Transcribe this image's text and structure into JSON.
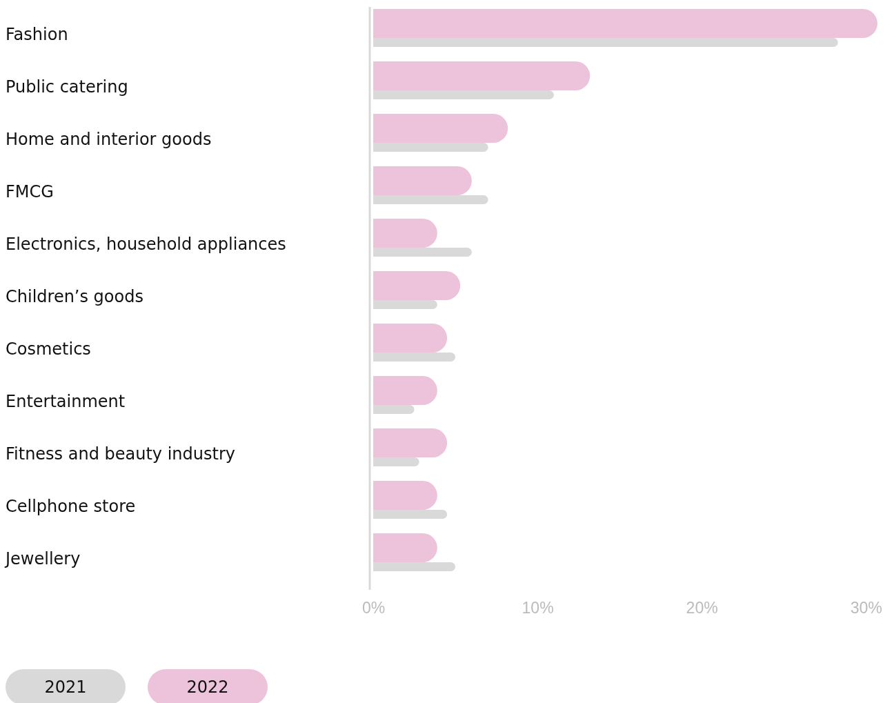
{
  "chart_data": {
    "type": "bar",
    "orientation": "horizontal",
    "categories": [
      "Fashion",
      "Public catering",
      "Home and interior goods",
      "FMCG",
      "Electronics, household appliances",
      "Children’s goods",
      "Cosmetics",
      "Entertainment",
      "Fitness and beauty industry",
      "Cellphone store",
      "Jewellery"
    ],
    "series": [
      {
        "name": "2021",
        "color": "#d9d9d9",
        "values": [
          28.3,
          11.0,
          7.0,
          7.0,
          6.0,
          3.9,
          5.0,
          2.5,
          2.8,
          4.5,
          5.0
        ]
      },
      {
        "name": "2022",
        "color": "#ecc3da",
        "values": [
          30.7,
          13.2,
          8.2,
          6.0,
          3.9,
          5.3,
          4.5,
          3.9,
          4.5,
          3.9,
          3.9
        ]
      }
    ],
    "xlim": [
      0,
      31
    ],
    "xticks": [
      {
        "value": 0,
        "label": "0%"
      },
      {
        "value": 10,
        "label": "10%"
      },
      {
        "value": 20,
        "label": "20%"
      },
      {
        "value": 30,
        "label": "30%"
      }
    ],
    "legend": "bottom left"
  }
}
